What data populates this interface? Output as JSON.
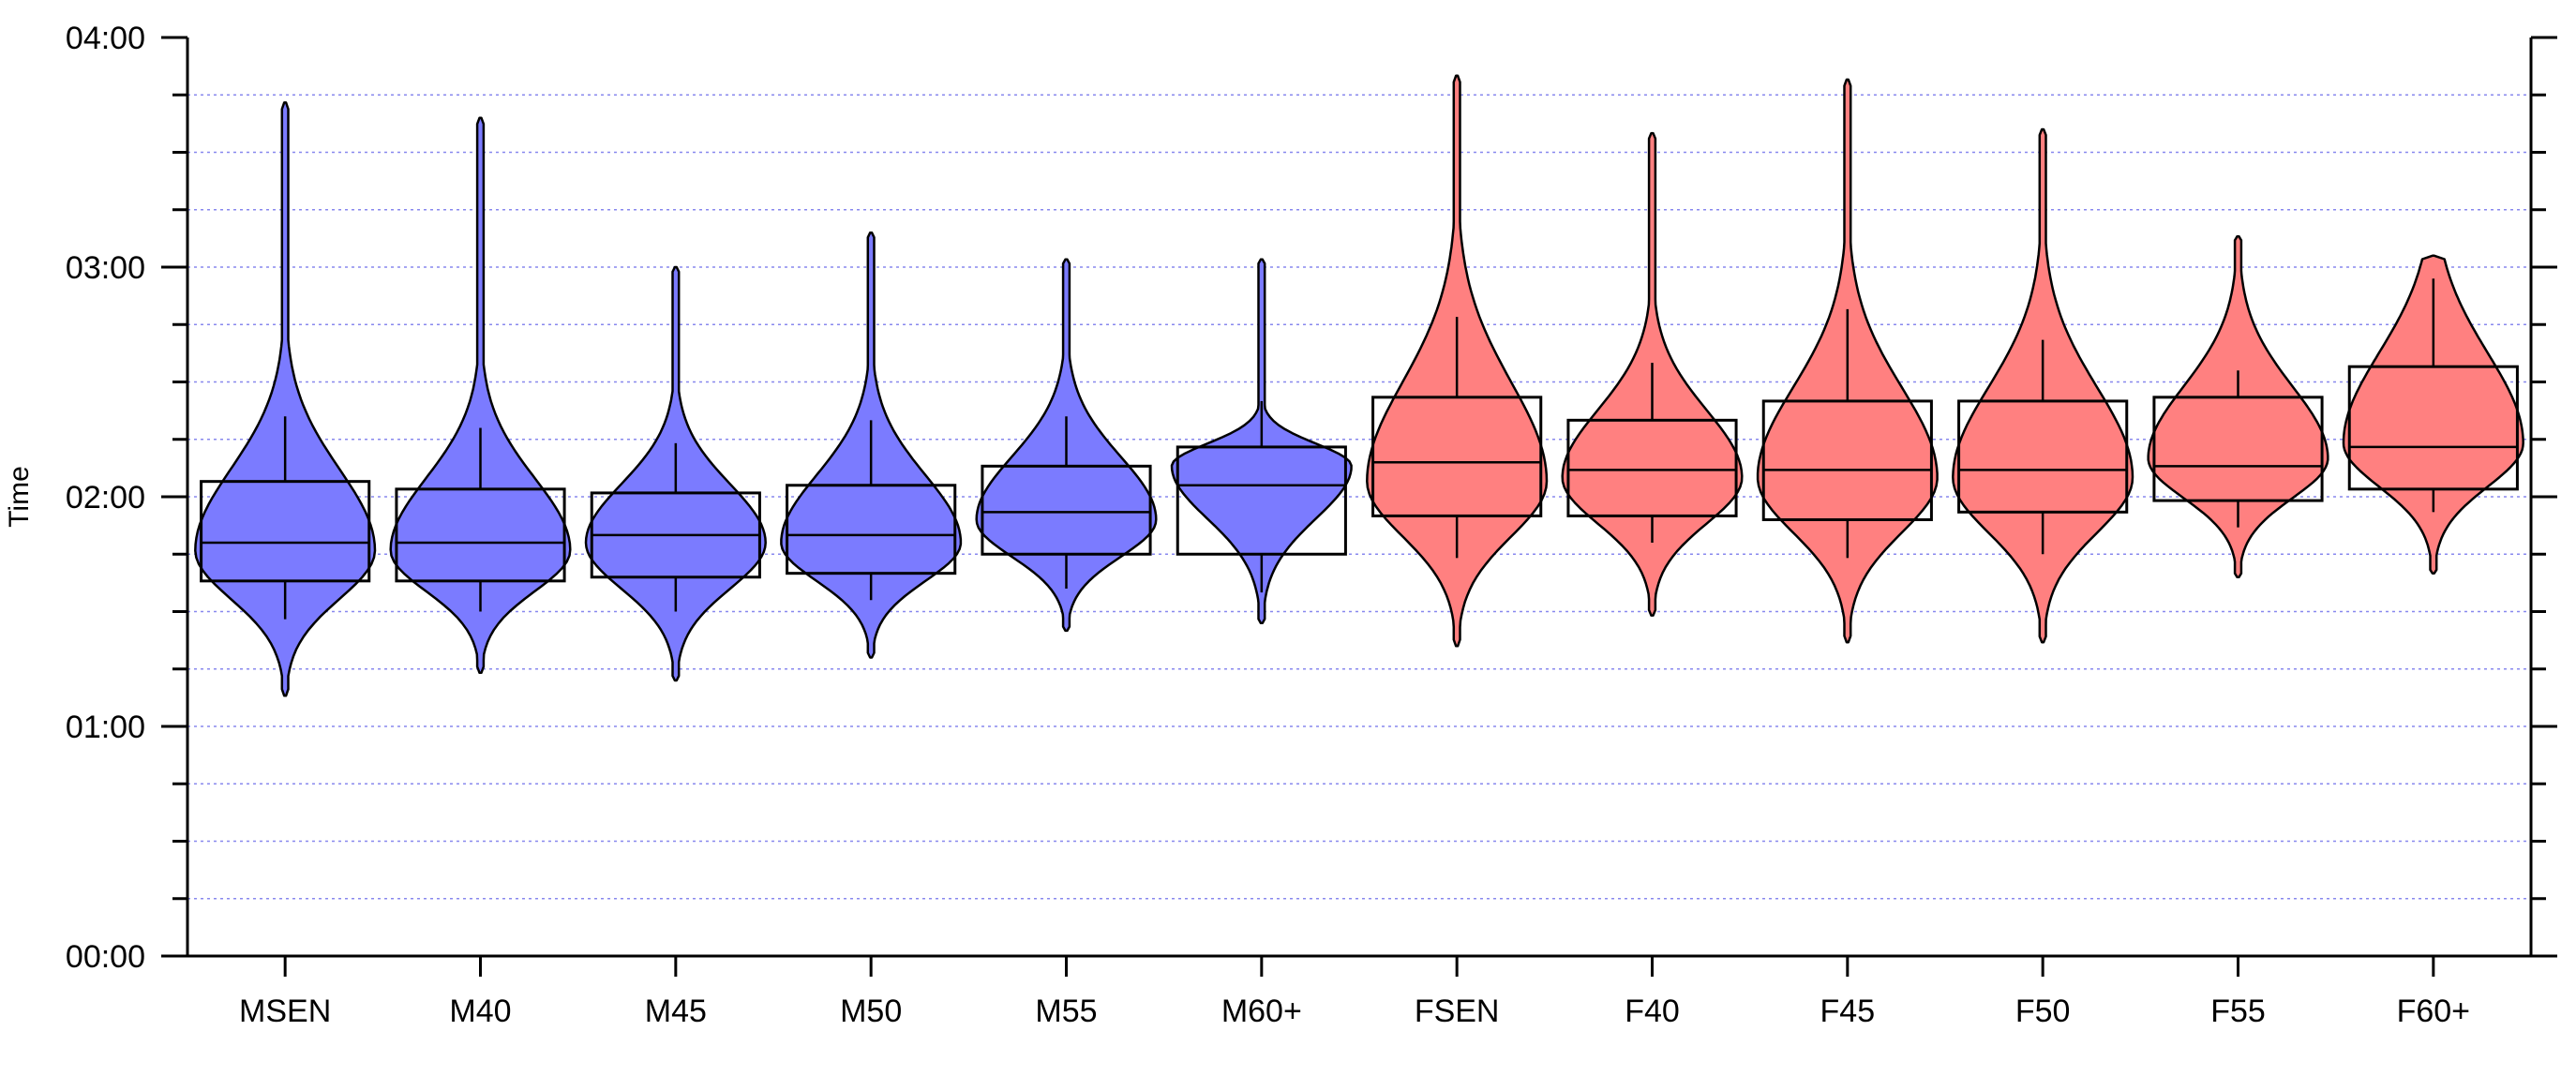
{
  "chart_data": {
    "type": "violin",
    "title": "",
    "xlabel": "",
    "ylabel": "Time",
    "y_unit": "hh:mm",
    "ylim": [
      "00:00",
      "04:00"
    ],
    "y_ticks": [
      "00:00",
      "01:00",
      "02:00",
      "03:00",
      "04:00"
    ],
    "grid": "horizontal dotted, every 15 minutes",
    "legend": "none",
    "colors": {
      "male": "#7b7bff",
      "female": "#ff8080",
      "grid": "#8888ee",
      "axis": "#000000"
    },
    "categories": [
      "MSEN",
      "M40",
      "M45",
      "M50",
      "M55",
      "M60+",
      "FSEN",
      "F40",
      "F45",
      "F50",
      "F55",
      "F60+"
    ],
    "series": [
      {
        "category": "MSEN",
        "group": "male",
        "min": "01:08",
        "max": "03:43",
        "q1": "01:38",
        "median": "01:48",
        "q3": "02:04",
        "whisker_low": "01:28",
        "whisker_high": "02:21",
        "mode": "01:46"
      },
      {
        "category": "M40",
        "group": "male",
        "min": "01:14",
        "max": "03:39",
        "q1": "01:38",
        "median": "01:48",
        "q3": "02:02",
        "whisker_low": "01:30",
        "whisker_high": "02:18",
        "mode": "01:46"
      },
      {
        "category": "M45",
        "group": "male",
        "min": "01:12",
        "max": "03:00",
        "q1": "01:39",
        "median": "01:50",
        "q3": "02:01",
        "whisker_low": "01:30",
        "whisker_high": "02:14",
        "mode": "01:48"
      },
      {
        "category": "M50",
        "group": "male",
        "min": "01:18",
        "max": "03:09",
        "q1": "01:40",
        "median": "01:50",
        "q3": "02:03",
        "whisker_low": "01:33",
        "whisker_high": "02:20",
        "mode": "01:48"
      },
      {
        "category": "M55",
        "group": "male",
        "min": "01:25",
        "max": "03:02",
        "q1": "01:45",
        "median": "01:56",
        "q3": "02:08",
        "whisker_low": "01:36",
        "whisker_high": "02:21",
        "mode": "01:54"
      },
      {
        "category": "M60+",
        "group": "male",
        "min": "01:27",
        "max": "03:02",
        "q1": "01:45",
        "median": "02:03",
        "q3": "02:13",
        "whisker_low": "01:35",
        "whisker_high": "02:25",
        "mode": "02:08"
      },
      {
        "category": "FSEN",
        "group": "female",
        "min": "01:21",
        "max": "03:50",
        "q1": "01:55",
        "median": "02:09",
        "q3": "02:26",
        "whisker_low": "01:44",
        "whisker_high": "02:47",
        "mode": "02:04"
      },
      {
        "category": "F40",
        "group": "female",
        "min": "01:29",
        "max": "03:35",
        "q1": "01:55",
        "median": "02:07",
        "q3": "02:20",
        "whisker_low": "01:48",
        "whisker_high": "02:35",
        "mode": "02:05"
      },
      {
        "category": "F45",
        "group": "female",
        "min": "01:22",
        "max": "03:49",
        "q1": "01:54",
        "median": "02:07",
        "q3": "02:25",
        "whisker_low": "01:44",
        "whisker_high": "02:49",
        "mode": "02:05"
      },
      {
        "category": "F50",
        "group": "female",
        "min": "01:22",
        "max": "03:36",
        "q1": "01:56",
        "median": "02:07",
        "q3": "02:25",
        "whisker_low": "01:45",
        "whisker_high": "02:41",
        "mode": "02:05"
      },
      {
        "category": "F55",
        "group": "female",
        "min": "01:39",
        "max": "03:08",
        "q1": "01:59",
        "median": "02:08",
        "q3": "02:26",
        "whisker_low": "01:52",
        "whisker_high": "02:33",
        "mode": "02:10"
      },
      {
        "category": "F60+",
        "group": "female",
        "min": "01:40",
        "max": "03:03",
        "q1": "02:02",
        "median": "02:13",
        "q3": "02:34",
        "whisker_low": "01:56",
        "whisker_high": "02:57",
        "mode": "02:14"
      }
    ]
  }
}
